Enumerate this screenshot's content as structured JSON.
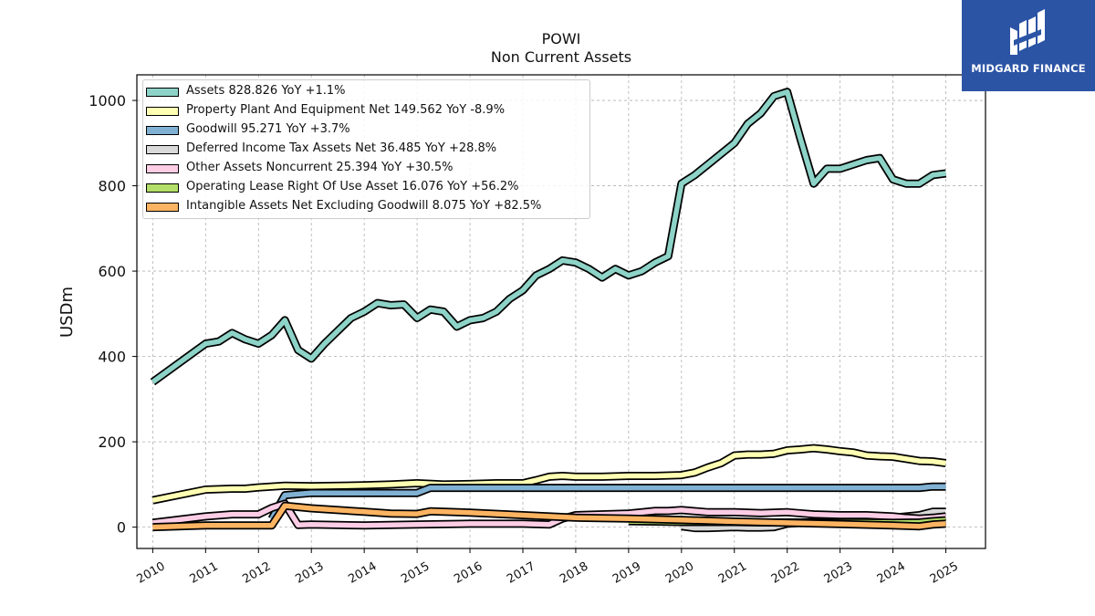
{
  "header": {
    "ticker": "POWI",
    "subtitle": "Non Current  Assets"
  },
  "logo": {
    "text": "MIDGARD FINANCE"
  },
  "legend": {
    "items": [
      {
        "label": "Assets  828.826 YoY +1.1%",
        "color": "#8dd3c7"
      },
      {
        "label": "Property Plant And Equipment Net  149.562 YoY -8.9%",
        "color": "#ffffb3"
      },
      {
        "label": "Goodwill  95.271 YoY +3.7%",
        "color": "#80b1d3"
      },
      {
        "label": "Deferred Income Tax Assets Net  36.485 YoY +28.8%",
        "color": "#d9d9d9"
      },
      {
        "label": "Other Assets Noncurrent  25.394 YoY +30.5%",
        "color": "#fccde5"
      },
      {
        "label": "Operating Lease Right Of Use Asset  16.076 YoY +56.2%",
        "color": "#b3de69"
      },
      {
        "label": "Intangible Assets Net Excluding Goodwill  8.075 YoY +82.5%",
        "color": "#fdb462"
      }
    ]
  },
  "chart_data": {
    "type": "line",
    "title": "POWI",
    "subtitle": "Non Current  Assets",
    "xlabel": "",
    "ylabel": "USDm",
    "xlim": [
      2009.7,
      2025.75
    ],
    "ylim": [
      -50,
      1060
    ],
    "x_ticks": [
      "2010",
      "2011",
      "2012",
      "2013",
      "2014",
      "2015",
      "2016",
      "2017",
      "2018",
      "2019",
      "2020",
      "2021",
      "2022",
      "2023",
      "2024",
      "2025"
    ],
    "y_ticks": [
      0,
      200,
      400,
      600,
      800,
      1000
    ],
    "grid": true,
    "legend_position": "top-left",
    "series": [
      {
        "name": "Assets",
        "color": "#8dd3c7",
        "points": [
          [
            2010.0,
            340
          ],
          [
            2011.0,
            430
          ],
          [
            2011.25,
            435
          ],
          [
            2011.5,
            455
          ],
          [
            2011.75,
            440
          ],
          [
            2012.0,
            430
          ],
          [
            2012.25,
            450
          ],
          [
            2012.5,
            485
          ],
          [
            2012.75,
            415
          ],
          [
            2013.0,
            395
          ],
          [
            2013.25,
            430
          ],
          [
            2013.5,
            460
          ],
          [
            2013.75,
            490
          ],
          [
            2014.0,
            505
          ],
          [
            2014.25,
            525
          ],
          [
            2014.5,
            520
          ],
          [
            2014.75,
            522
          ],
          [
            2015.0,
            490
          ],
          [
            2015.25,
            510
          ],
          [
            2015.5,
            505
          ],
          [
            2015.75,
            470
          ],
          [
            2016.0,
            485
          ],
          [
            2016.25,
            490
          ],
          [
            2016.5,
            505
          ],
          [
            2016.75,
            535
          ],
          [
            2017.0,
            555
          ],
          [
            2017.25,
            590
          ],
          [
            2017.5,
            605
          ],
          [
            2017.75,
            625
          ],
          [
            2018.0,
            620
          ],
          [
            2018.25,
            605
          ],
          [
            2018.5,
            585
          ],
          [
            2018.75,
            605
          ],
          [
            2019.0,
            590
          ],
          [
            2019.25,
            600
          ],
          [
            2019.5,
            620
          ],
          [
            2019.75,
            635
          ],
          [
            2020.0,
            805
          ],
          [
            2020.25,
            825
          ],
          [
            2020.5,
            850
          ],
          [
            2020.75,
            875
          ],
          [
            2021.0,
            900
          ],
          [
            2021.25,
            945
          ],
          [
            2021.5,
            970
          ],
          [
            2021.75,
            1010
          ],
          [
            2022.0,
            1020
          ],
          [
            2022.25,
            910
          ],
          [
            2022.5,
            805
          ],
          [
            2022.75,
            840
          ],
          [
            2023.0,
            840
          ],
          [
            2023.25,
            850
          ],
          [
            2023.5,
            860
          ],
          [
            2023.75,
            865
          ],
          [
            2024.0,
            815
          ],
          [
            2024.25,
            805
          ],
          [
            2024.5,
            805
          ],
          [
            2024.75,
            825
          ],
          [
            2025.0,
            829
          ]
        ]
      },
      {
        "name": "Property Plant And Equipment Net",
        "color": "#ffffb3",
        "points": [
          [
            2010.0,
            63
          ],
          [
            2011.0,
            88
          ],
          [
            2011.5,
            90
          ],
          [
            2011.75,
            90
          ],
          [
            2012.0,
            93
          ],
          [
            2012.5,
            97
          ],
          [
            2013.0,
            96
          ],
          [
            2014.0,
            98
          ],
          [
            2014.5,
            100
          ],
          [
            2015.0,
            103
          ],
          [
            2015.5,
            100
          ],
          [
            2016.0,
            101
          ],
          [
            2016.5,
            103
          ],
          [
            2017.0,
            103
          ],
          [
            2017.25,
            110
          ],
          [
            2017.5,
            118
          ],
          [
            2017.75,
            120
          ],
          [
            2018.0,
            118
          ],
          [
            2018.5,
            118
          ],
          [
            2019.0,
            120
          ],
          [
            2019.5,
            120
          ],
          [
            2020.0,
            122
          ],
          [
            2020.25,
            128
          ],
          [
            2020.5,
            140
          ],
          [
            2020.75,
            150
          ],
          [
            2021.0,
            168
          ],
          [
            2021.25,
            170
          ],
          [
            2021.5,
            170
          ],
          [
            2021.75,
            172
          ],
          [
            2022.0,
            180
          ],
          [
            2022.25,
            182
          ],
          [
            2022.5,
            185
          ],
          [
            2022.75,
            182
          ],
          [
            2023.0,
            178
          ],
          [
            2023.25,
            175
          ],
          [
            2023.5,
            168
          ],
          [
            2023.75,
            166
          ],
          [
            2024.0,
            165
          ],
          [
            2024.25,
            160
          ],
          [
            2024.5,
            155
          ],
          [
            2024.75,
            154
          ],
          [
            2025.0,
            150
          ]
        ]
      },
      {
        "name": "Goodwill",
        "color": "#80b1d3",
        "points": [
          [
            2012.25,
            19
          ],
          [
            2012.5,
            75
          ],
          [
            2013.0,
            80
          ],
          [
            2014.0,
            80
          ],
          [
            2015.0,
            80
          ],
          [
            2015.25,
            92
          ],
          [
            2016.0,
            92
          ],
          [
            2017.0,
            92
          ],
          [
            2018.0,
            92
          ],
          [
            2019.0,
            92
          ],
          [
            2020.0,
            92
          ],
          [
            2021.0,
            92
          ],
          [
            2022.0,
            92
          ],
          [
            2023.0,
            92
          ],
          [
            2024.0,
            92
          ],
          [
            2024.5,
            92
          ],
          [
            2024.75,
            95
          ],
          [
            2025.0,
            95
          ]
        ]
      },
      {
        "name": "Deferred Income Tax Assets Net",
        "color": "#d9d9d9",
        "points": [
          [
            2020.0,
            2
          ],
          [
            2020.25,
            -2
          ],
          [
            2020.5,
            -2
          ],
          [
            2020.75,
            -1
          ],
          [
            2021.0,
            0
          ],
          [
            2021.25,
            -1
          ],
          [
            2021.5,
            -1
          ],
          [
            2021.75,
            0
          ],
          [
            2022.0,
            8
          ],
          [
            2022.5,
            12
          ],
          [
            2023.0,
            15
          ],
          [
            2023.5,
            18
          ],
          [
            2023.75,
            22
          ],
          [
            2024.0,
            22
          ],
          [
            2024.5,
            28
          ],
          [
            2024.75,
            36
          ],
          [
            2025.0,
            36
          ]
        ]
      },
      {
        "name": "Other Assets Noncurrent",
        "color": "#fccde5",
        "points": [
          [
            2010.0,
            10
          ],
          [
            2011.0,
            25
          ],
          [
            2011.5,
            30
          ],
          [
            2012.0,
            30
          ],
          [
            2012.25,
            45
          ],
          [
            2012.5,
            55
          ],
          [
            2012.75,
            5
          ],
          [
            2013.0,
            6
          ],
          [
            2014.0,
            4
          ],
          [
            2015.0,
            6
          ],
          [
            2016.0,
            8
          ],
          [
            2017.0,
            8
          ],
          [
            2017.5,
            6
          ],
          [
            2017.75,
            20
          ],
          [
            2018.0,
            28
          ],
          [
            2018.5,
            30
          ],
          [
            2019.0,
            32
          ],
          [
            2019.25,
            35
          ],
          [
            2019.5,
            38
          ],
          [
            2019.75,
            38
          ],
          [
            2020.0,
            40
          ],
          [
            2020.5,
            35
          ],
          [
            2021.0,
            35
          ],
          [
            2021.5,
            33
          ],
          [
            2022.0,
            35
          ],
          [
            2022.5,
            30
          ],
          [
            2023.0,
            28
          ],
          [
            2023.5,
            28
          ],
          [
            2024.0,
            25
          ],
          [
            2024.25,
            22
          ],
          [
            2024.5,
            20
          ],
          [
            2024.75,
            22
          ],
          [
            2025.0,
            25
          ]
        ]
      },
      {
        "name": "Operating Lease Right Of Use Asset",
        "color": "#b3de69",
        "points": [
          [
            2019.0,
            14
          ],
          [
            2019.5,
            13
          ],
          [
            2020.0,
            12
          ],
          [
            2020.5,
            12
          ],
          [
            2021.0,
            12
          ],
          [
            2021.5,
            11
          ],
          [
            2022.0,
            11
          ],
          [
            2022.5,
            11
          ],
          [
            2023.0,
            11
          ],
          [
            2023.5,
            11
          ],
          [
            2024.0,
            10
          ],
          [
            2024.5,
            11
          ],
          [
            2024.75,
            14
          ],
          [
            2025.0,
            16
          ]
        ]
      },
      {
        "name": "Intangible Assets Net Excluding Goodwill",
        "color": "#fdb462",
        "points": [
          [
            2010.0,
            0
          ],
          [
            2011.0,
            4
          ],
          [
            2012.0,
            4
          ],
          [
            2012.25,
            4
          ],
          [
            2012.5,
            50
          ],
          [
            2013.0,
            44
          ],
          [
            2014.0,
            36
          ],
          [
            2014.5,
            32
          ],
          [
            2015.0,
            31
          ],
          [
            2015.25,
            37
          ],
          [
            2016.0,
            34
          ],
          [
            2017.0,
            28
          ],
          [
            2017.5,
            25
          ],
          [
            2018.0,
            22
          ],
          [
            2019.0,
            20
          ],
          [
            2020.0,
            17
          ],
          [
            2021.0,
            13
          ],
          [
            2022.0,
            10
          ],
          [
            2023.0,
            7
          ],
          [
            2024.0,
            4
          ],
          [
            2024.25,
            3
          ],
          [
            2024.5,
            2
          ],
          [
            2024.75,
            6
          ],
          [
            2025.0,
            8
          ]
        ]
      }
    ]
  }
}
